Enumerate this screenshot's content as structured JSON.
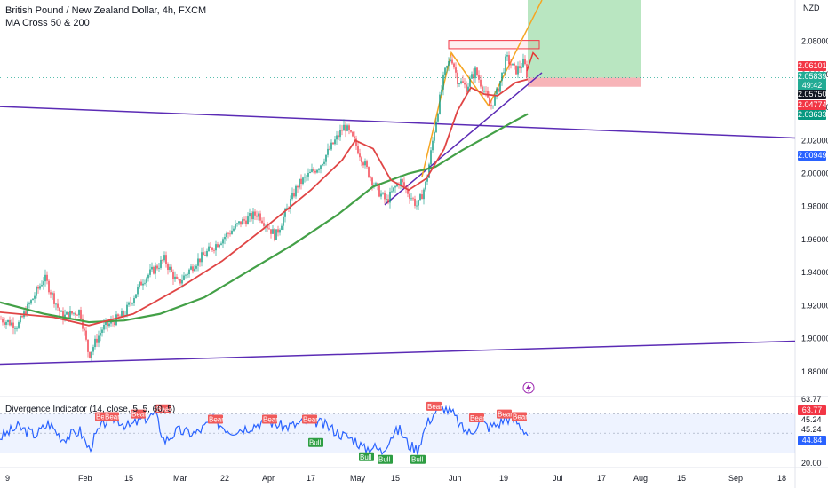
{
  "header": {
    "title": "British Pound / New Zealand Dollar, 4h, FXCM",
    "ma_label": "MA Cross 50 & 200",
    "indicator_label": "Divergence Indicator (14, close, 5, 5, 60, 5)",
    "currency": "NZD"
  },
  "price_tags": [
    {
      "text": "2.06101",
      "color": "#f23645"
    },
    {
      "text": "2.05839",
      "color": "#22ab94"
    },
    {
      "text": "49:42",
      "color": "#22ab94"
    },
    {
      "text": "2.05750",
      "color": "#131722"
    },
    {
      "text": "2.04774",
      "color": "#f23645"
    },
    {
      "text": "2.03633",
      "color": "#089981"
    },
    {
      "text": "2.00949",
      "color": "#2962ff"
    }
  ],
  "osc_tags": [
    {
      "text": "63.77",
      "color": "#f23645"
    },
    {
      "text": "44.84",
      "color": "#2962ff"
    }
  ],
  "osc_ticks": [
    "63.77",
    "45.24",
    "45.24",
    "20.00"
  ],
  "colors": {
    "up": "#089981",
    "down": "#f23645",
    "ma50": "#e04545",
    "ma200": "#43a047",
    "trend": "#5b2bb5",
    "osc": "#2962ff",
    "target": "#b9e6c1",
    "stop": "#f7b4b8"
  },
  "chart_data": [
    {
      "type": "candlestick",
      "title": "British Pound / New Zealand Dollar, 4h, FXCM",
      "ylabel": "NZD",
      "ylim": [
        1.866,
        2.105
      ],
      "yticks": [
        "2.08000",
        "2.06000",
        "2.04000",
        "2.02000",
        "2.00000",
        "1.98000",
        "1.96000",
        "1.94000",
        "1.92000",
        "1.90000",
        "1.88000"
      ],
      "xticks": [
        "9",
        "Feb",
        "15",
        "Mar",
        "22",
        "Apr",
        "17",
        "May",
        "15",
        "Jun",
        "19",
        "Jul",
        "17",
        "Aug",
        "15",
        "Sep",
        "18"
      ],
      "price_anchors": [
        [
          0,
          1.912
        ],
        [
          20,
          1.908
        ],
        [
          50,
          1.937
        ],
        [
          70,
          1.913
        ],
        [
          90,
          1.917
        ],
        [
          100,
          1.89
        ],
        [
          115,
          1.906
        ],
        [
          140,
          1.915
        ],
        [
          160,
          1.935
        ],
        [
          185,
          1.948
        ],
        [
          200,
          1.933
        ],
        [
          220,
          1.946
        ],
        [
          245,
          1.958
        ],
        [
          270,
          1.97
        ],
        [
          290,
          1.976
        ],
        [
          310,
          1.962
        ],
        [
          335,
          1.993
        ],
        [
          360,
          2.005
        ],
        [
          375,
          2.018
        ],
        [
          388,
          2.029
        ],
        [
          400,
          2.018
        ],
        [
          415,
          2.0
        ],
        [
          425,
          1.99
        ],
        [
          435,
          1.983
        ],
        [
          450,
          1.996
        ],
        [
          460,
          1.988
        ],
        [
          470,
          1.98
        ],
        [
          480,
          1.995
        ],
        [
          490,
          2.03
        ],
        [
          500,
          2.06
        ],
        [
          508,
          2.071
        ],
        [
          515,
          2.057
        ],
        [
          525,
          2.052
        ],
        [
          535,
          2.062
        ],
        [
          545,
          2.05
        ],
        [
          552,
          2.04
        ],
        [
          560,
          2.05
        ],
        [
          570,
          2.07
        ],
        [
          580,
          2.062
        ],
        [
          590,
          2.067
        ],
        [
          594,
          2.058
        ]
      ],
      "series": [
        {
          "name": "MA 50",
          "points": [
            [
              0,
              1.916
            ],
            [
              60,
              1.913
            ],
            [
              100,
              1.908
            ],
            [
              150,
              1.915
            ],
            [
              200,
              1.93
            ],
            [
              250,
              1.947
            ],
            [
              300,
              1.968
            ],
            [
              350,
              1.99
            ],
            [
              385,
              2.008
            ],
            [
              400,
              2.02
            ],
            [
              420,
              2.015
            ],
            [
              440,
              1.996
            ],
            [
              460,
              1.99
            ],
            [
              480,
              1.997
            ],
            [
              500,
              2.015
            ],
            [
              515,
              2.038
            ],
            [
              530,
              2.052
            ],
            [
              545,
              2.048
            ],
            [
              560,
              2.047
            ],
            [
              580,
              2.055
            ],
            [
              594,
              2.057
            ]
          ]
        },
        {
          "name": "MA 200",
          "points": [
            [
              0,
              1.922
            ],
            [
              50,
              1.915
            ],
            [
              100,
              1.91
            ],
            [
              140,
              1.911
            ],
            [
              180,
              1.915
            ],
            [
              230,
              1.925
            ],
            [
              280,
              1.941
            ],
            [
              330,
              1.957
            ],
            [
              380,
              1.975
            ],
            [
              420,
              1.992
            ],
            [
              460,
              2.0
            ],
            [
              490,
              2.004
            ],
            [
              520,
              2.014
            ],
            [
              550,
              2.023
            ],
            [
              580,
              2.032
            ],
            [
              594,
              2.036
            ]
          ]
        }
      ],
      "levels": {
        "target_top": 2.105,
        "entry": 2.058,
        "stop": 2.0525,
        "box_top": 2.0805,
        "box_bottom": 2.0755
      }
    },
    {
      "type": "line",
      "title": "Divergence Indicator (14, close, 5, 5, 60, 5)",
      "ylim": [
        20.0,
        70.0
      ],
      "series": [
        {
          "name": "RSI",
          "points": [
            [
              0,
              42
            ],
            [
              20,
              50
            ],
            [
              40,
              44
            ],
            [
              55,
              53
            ],
            [
              70,
              41
            ],
            [
              90,
              47
            ],
            [
              100,
              33
            ],
            [
              110,
              46
            ],
            [
              120,
              55
            ],
            [
              130,
              57
            ],
            [
              145,
              50
            ],
            [
              160,
              56
            ],
            [
              175,
              60
            ],
            [
              185,
              39
            ],
            [
              200,
              47
            ],
            [
              220,
              45
            ],
            [
              240,
              55
            ],
            [
              260,
              47
            ],
            [
              280,
              50
            ],
            [
              300,
              55
            ],
            [
              320,
              50
            ],
            [
              335,
              52
            ],
            [
              350,
              56
            ],
            [
              370,
              50
            ],
            [
              385,
              44
            ],
            [
              400,
              40
            ],
            [
              410,
              33
            ],
            [
              420,
              35
            ],
            [
              430,
              31
            ],
            [
              440,
              43
            ],
            [
              450,
              48
            ],
            [
              460,
              36
            ],
            [
              470,
              33
            ],
            [
              480,
              52
            ],
            [
              490,
              62
            ],
            [
              500,
              65
            ],
            [
              510,
              60
            ],
            [
              520,
              49
            ],
            [
              530,
              45
            ],
            [
              540,
              55
            ],
            [
              550,
              50
            ],
            [
              560,
              52
            ],
            [
              570,
              57
            ],
            [
              580,
              55
            ],
            [
              590,
              48
            ],
            [
              594,
              44.84
            ]
          ]
        }
      ],
      "labels": [
        {
          "text": "Bear",
          "x": 115,
          "y": 58
        },
        {
          "text": "Bear",
          "x": 125,
          "y": 58
        },
        {
          "text": "Bear",
          "x": 155,
          "y": 60
        },
        {
          "text": "Bear",
          "x": 183,
          "y": 64
        },
        {
          "text": "Bear",
          "x": 242,
          "y": 56
        },
        {
          "text": "Bear",
          "x": 303,
          "y": 56
        },
        {
          "text": "Bear",
          "x": 348,
          "y": 56
        },
        {
          "text": "Bull",
          "x": 355,
          "y": 38
        },
        {
          "text": "Bull",
          "x": 412,
          "y": 27
        },
        {
          "text": "Bull",
          "x": 433,
          "y": 25
        },
        {
          "text": "Bull",
          "x": 470,
          "y": 25
        },
        {
          "text": "Bear",
          "x": 488,
          "y": 66
        },
        {
          "text": "Bear",
          "x": 536,
          "y": 57
        },
        {
          "text": "Bear",
          "x": 567,
          "y": 60
        },
        {
          "text": "Bear",
          "x": 584,
          "y": 58
        }
      ]
    }
  ]
}
